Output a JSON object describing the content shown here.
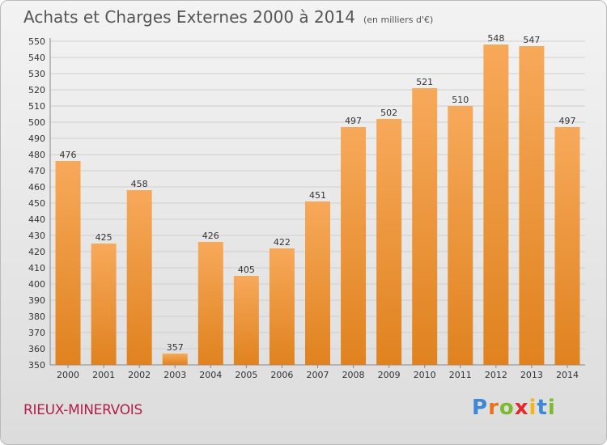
{
  "header": {
    "title": "Achats et Charges Externes 2000 à 2014",
    "subtitle": "(en milliers d'€)"
  },
  "location": "RIEUX-MINERVOIS",
  "brand": {
    "letters": [
      "P",
      "r",
      "o",
      "x",
      "i",
      "t",
      "i"
    ],
    "colors": [
      "#3d87d6",
      "#e9731c",
      "#7cbb2d",
      "#e22a2a",
      "#f3b617",
      "#3d87d6",
      "#7cbb2d"
    ]
  },
  "colors": {
    "bar_light": "#f7a95a",
    "bar_dark": "#e0821f",
    "grid": "#cfcfcf",
    "axis": "#888888"
  },
  "chart_data": {
    "type": "bar",
    "title": "Achats et Charges Externes 2000 à 2014",
    "subtitle": "(en milliers d'€)",
    "categories": [
      "2000",
      "2001",
      "2002",
      "2003",
      "2004",
      "2005",
      "2006",
      "2007",
      "2008",
      "2009",
      "2010",
      "2011",
      "2012",
      "2013",
      "2014"
    ],
    "values": [
      476,
      425,
      458,
      357,
      426,
      405,
      422,
      451,
      497,
      502,
      521,
      510,
      548,
      547,
      497
    ],
    "ylim": [
      350,
      550
    ],
    "yticks": [
      350,
      360,
      370,
      380,
      390,
      400,
      410,
      420,
      430,
      440,
      450,
      460,
      470,
      480,
      490,
      500,
      510,
      520,
      530,
      540,
      550
    ],
    "grid": true
  }
}
